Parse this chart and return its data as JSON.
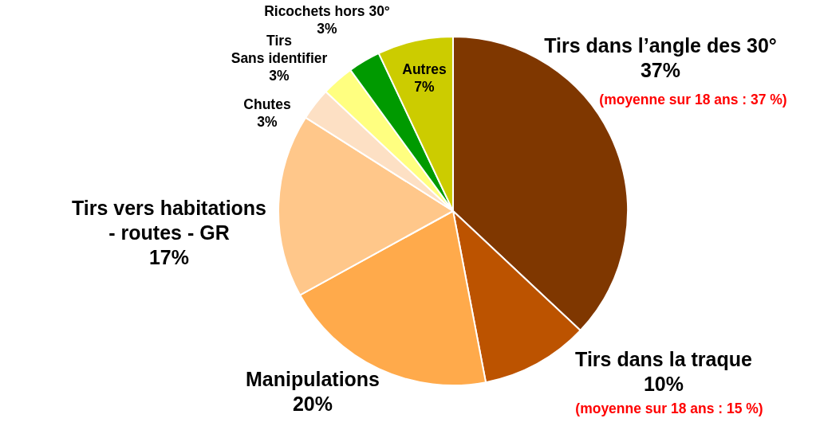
{
  "chart_data": {
    "type": "pie",
    "categories": [
      "Tirs dans l’angle des 30°",
      "Tirs dans la traque",
      "Manipulations",
      "Tirs vers habitations\n- routes - GR",
      "Chutes",
      "Tirs\nSans identifier",
      "Ricochets hors 30°",
      "Autres"
    ],
    "values": [
      37,
      10,
      20,
      17,
      3,
      3,
      3,
      7
    ],
    "value_labels": [
      "37%",
      "10%",
      "20%",
      "17%",
      "3%",
      "3%",
      "3%",
      "7%"
    ],
    "colors": [
      "#7f3700",
      "#bc5300",
      "#ffaa4b",
      "#ffc78a",
      "#fde0c4",
      "#ffff80",
      "#009a00",
      "#cccc00"
    ],
    "annotations": [
      "(moyenne sur 18 ans : 37 %)",
      "(moyenne sur 18 ans : 15 %)"
    ]
  }
}
